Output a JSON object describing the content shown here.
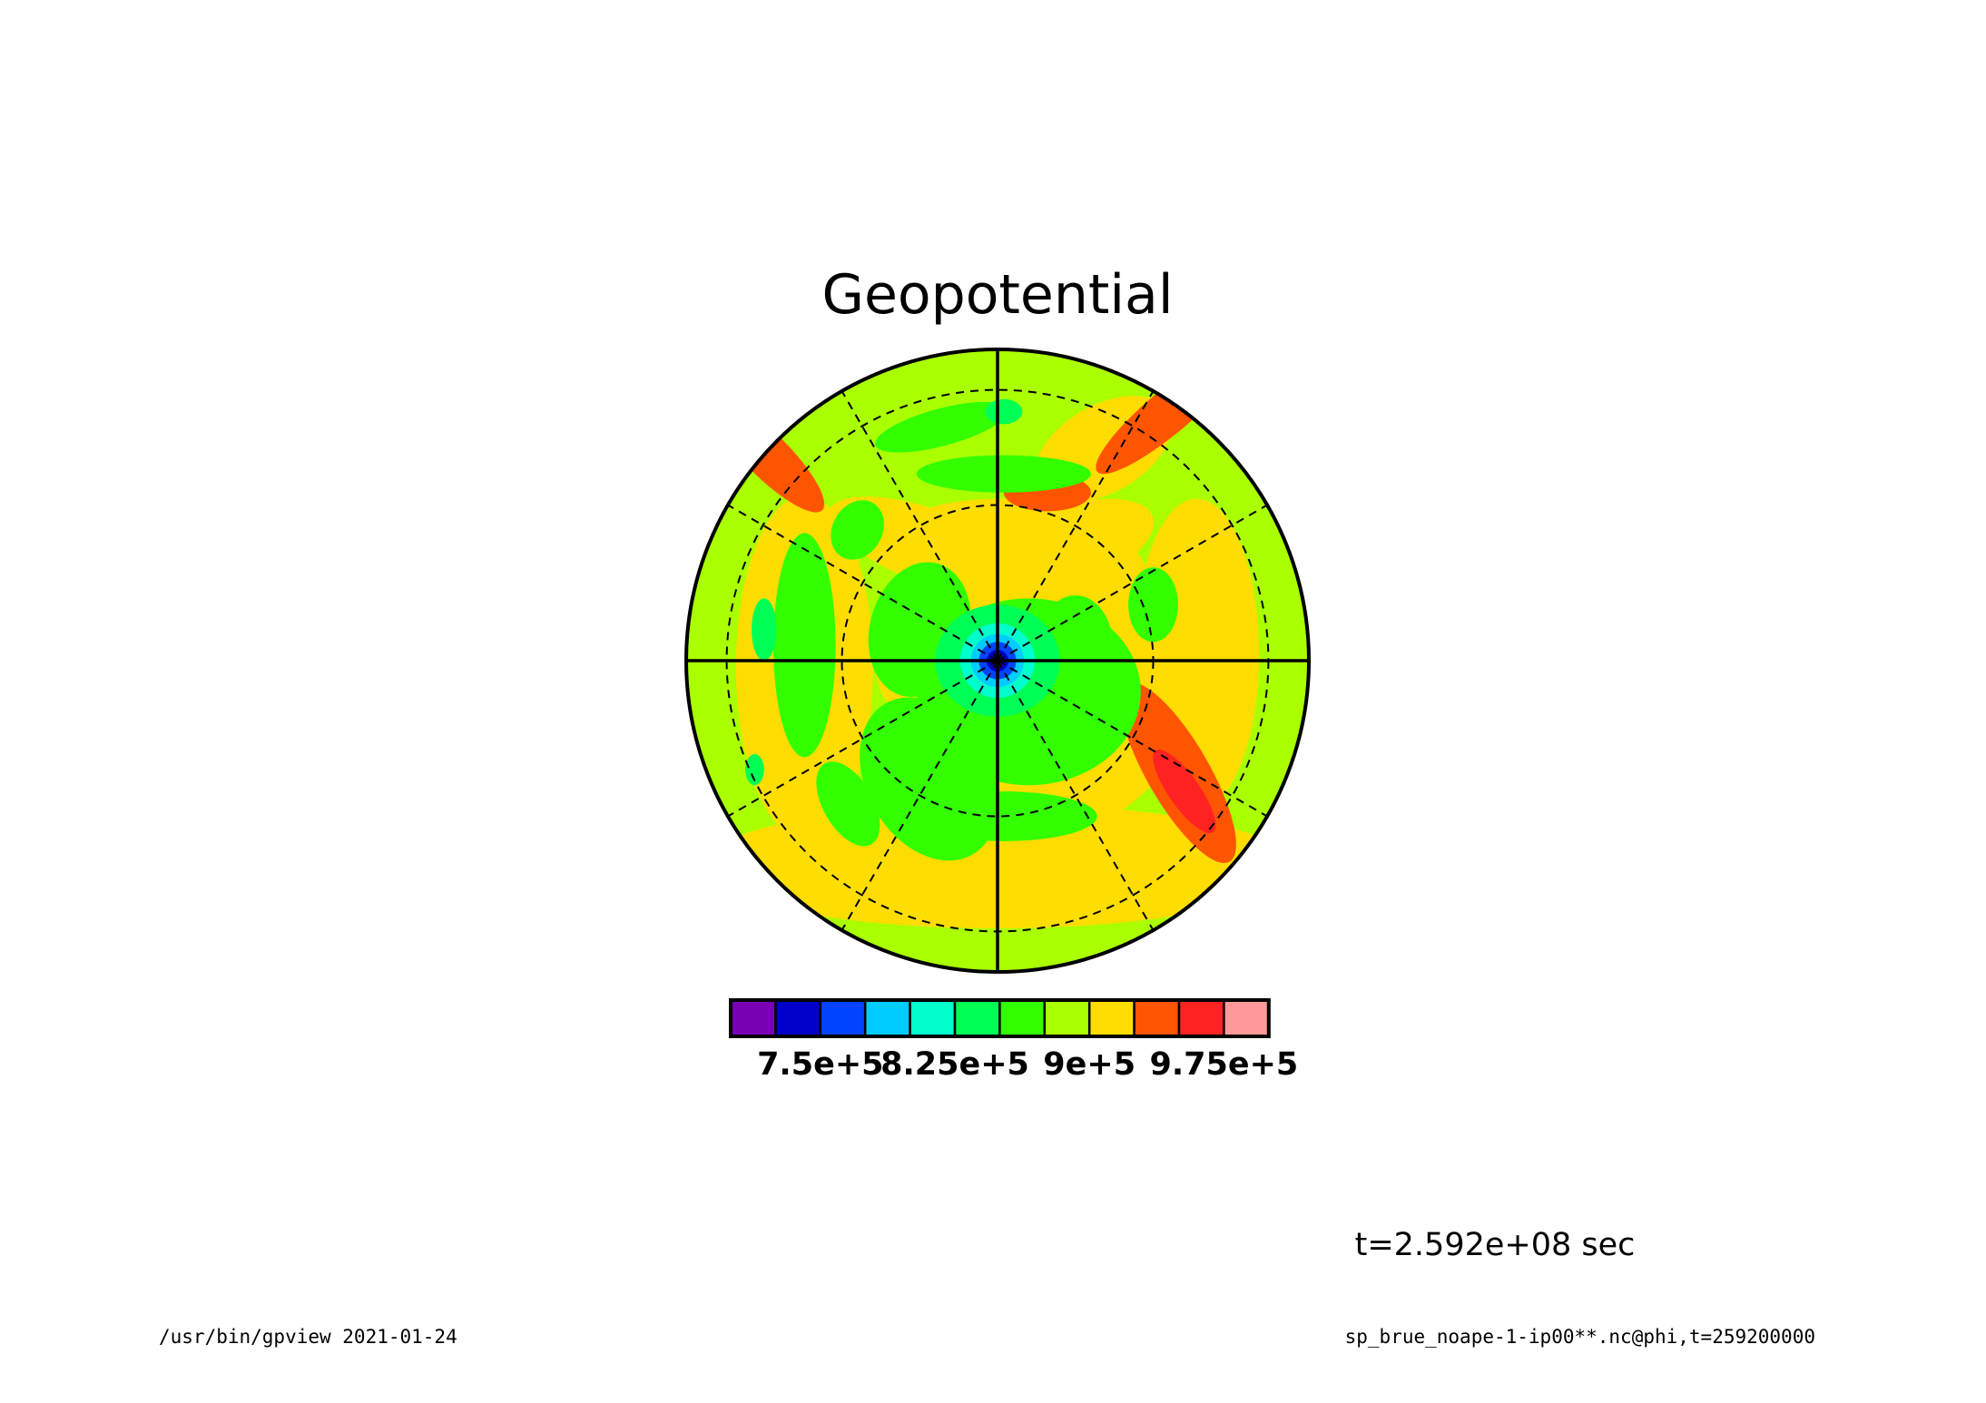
{
  "page": {
    "time_label": "t=2.592e+08 sec",
    "footer_left": "/usr/bin/gpview  2021-01-24",
    "footer_right": "sp_brue_noape-1-ip00**.nc@phi,t=259200000"
  },
  "chart_data": {
    "type": "heatmap",
    "projection": "polar",
    "title": "Geopotential",
    "grid": true,
    "colorbar": {
      "position": "bottom",
      "colors": [
        "#7a00b4",
        "#0000c8",
        "#0044ff",
        "#00ccff",
        "#00ffcc",
        "#00ff55",
        "#33ff00",
        "#aaff00",
        "#ffdd00",
        "#ff5500",
        "#ff2222",
        "#ff9999"
      ],
      "ticks": [
        {
          "after_bin": 2,
          "label": "7.5e+5",
          "value": 750000
        },
        {
          "after_bin": 5,
          "label": "8.25e+5",
          "value": 825000
        },
        {
          "after_bin": 8,
          "label": "9e+5",
          "value": 900000
        },
        {
          "after_bin": 11,
          "label": "9.75e+5",
          "value": 975000
        }
      ],
      "bin_width": 25000
    },
    "field_levels": [
      {
        "level": 3,
        "color": "#aaff00",
        "blobs": [
          [
            0,
            0,
            1.05,
            1.05,
            0
          ]
        ]
      },
      {
        "level": 4,
        "color": "#ffdd00",
        "blobs": [
          [
            0,
            0.38,
            0.36,
            0.14,
            0
          ],
          [
            0.16,
            0.34,
            0.36,
            0.14,
            -20
          ],
          [
            -0.2,
            0.36,
            0.36,
            0.12,
            20
          ],
          [
            0.32,
            0.1,
            0.18,
            0.3,
            10
          ],
          [
            -0.3,
            0.05,
            0.1,
            0.22,
            0
          ],
          [
            0.22,
            -0.42,
            0.42,
            0.15,
            -30
          ],
          [
            0,
            -0.66,
            0.95,
            0.2,
            0
          ],
          [
            -0.26,
            -0.28,
            0.12,
            0.08,
            -20
          ],
          [
            0.34,
            0.68,
            0.24,
            0.14,
            -30
          ],
          [
            -0.62,
            -0.02,
            0.22,
            0.55,
            0
          ],
          [
            0.64,
            0.02,
            0.2,
            0.5,
            0
          ]
        ]
      },
      {
        "level": 5,
        "color": "#ff5500",
        "blobs": [
          [
            0.16,
            0.54,
            0.14,
            0.06,
            0
          ],
          [
            0.58,
            -0.36,
            0.1,
            0.33,
            -30
          ],
          [
            -0.74,
            0.66,
            0.25,
            0.07,
            45
          ],
          [
            0.55,
            0.8,
            0.3,
            0.07,
            -40
          ]
        ]
      },
      {
        "level": 6,
        "color": "#ff2222",
        "blobs": [
          [
            0.6,
            -0.42,
            0.05,
            0.16,
            -35
          ]
        ]
      },
      {
        "level": 2,
        "color": "#33ff00",
        "blobs": [
          [
            0.1,
            -0.1,
            0.36,
            0.3,
            0
          ],
          [
            -0.22,
            -0.38,
            0.2,
            0.28,
            -30
          ],
          [
            0.02,
            -0.5,
            0.3,
            0.08,
            0
          ],
          [
            -0.25,
            0.1,
            0.16,
            0.22,
            15
          ],
          [
            0.25,
            0.05,
            0.12,
            0.16,
            0
          ],
          [
            0.02,
            0.6,
            0.28,
            0.06,
            0
          ],
          [
            -0.18,
            0.75,
            0.22,
            0.06,
            -15
          ],
          [
            -0.62,
            0.05,
            0.1,
            0.36,
            0
          ],
          [
            -0.48,
            -0.46,
            0.08,
            0.15,
            -30
          ],
          [
            0.5,
            0.18,
            0.08,
            0.12,
            0
          ],
          [
            -0.45,
            0.42,
            0.08,
            0.1,
            30
          ]
        ]
      },
      {
        "level": 1,
        "color": "#00ff55",
        "blobs": [
          [
            0,
            0,
            0.2,
            0.18,
            0
          ],
          [
            -0.75,
            0.1,
            0.04,
            0.1,
            0
          ],
          [
            -0.78,
            -0.35,
            0.03,
            0.05,
            0
          ],
          [
            0.02,
            0.8,
            0.06,
            0.04,
            0
          ]
        ]
      },
      {
        "level": 0,
        "color": "#00ffcc",
        "blobs": [
          [
            0,
            0,
            0.12,
            0.12,
            0
          ]
        ]
      },
      {
        "level": -1,
        "color": "#00ccff",
        "blobs": [
          [
            0,
            0,
            0.085,
            0.085,
            0
          ]
        ]
      },
      {
        "level": -2,
        "color": "#0044ff",
        "blobs": [
          [
            0,
            0,
            0.06,
            0.06,
            0
          ]
        ]
      },
      {
        "level": -3,
        "color": "#0000c8",
        "blobs": [
          [
            0,
            0,
            0.035,
            0.035,
            0
          ]
        ]
      },
      {
        "level": -4,
        "color": "#7a00b4",
        "blobs": [
          [
            0,
            0,
            0.015,
            0.015,
            0
          ]
        ]
      }
    ],
    "lat_circles": [
      0.5,
      0.87
    ],
    "meridian_spokes_deg": [
      30,
      60,
      120,
      150,
      210,
      240,
      300,
      330
    ]
  }
}
